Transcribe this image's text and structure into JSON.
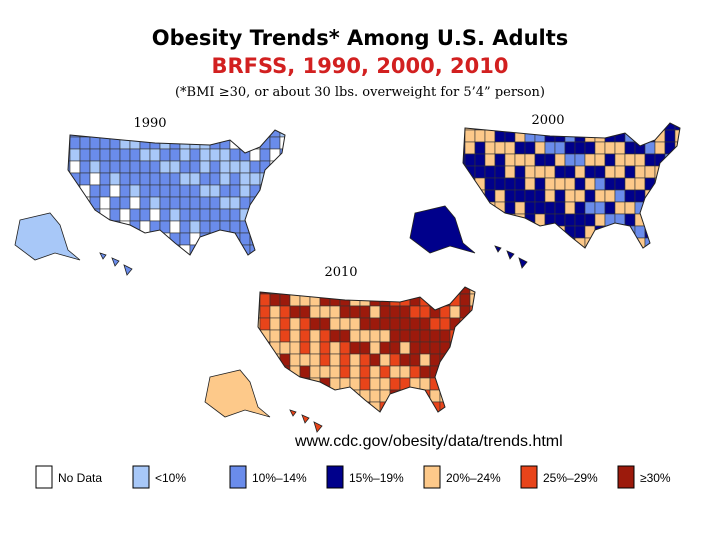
{
  "header": {
    "title": "Obesity Trends* Among U.S. Adults",
    "subtitle": "BRFSS, 1990, 2000, 2010",
    "note": "(*BMI ≥30, or about 30 lbs. overweight for 5’4” person)"
  },
  "maps": [
    {
      "label": "1990"
    },
    {
      "label": "2000"
    },
    {
      "label": "2010"
    }
  ],
  "source": "www.cdc.gov/obesity/data/trends.html",
  "legend": [
    {
      "label": "No Data",
      "color": "#ffffff"
    },
    {
      "label": "<10%",
      "color": "#a8c8f8"
    },
    {
      "label": "10%–14%",
      "color": "#6a8ceb"
    },
    {
      "label": "15%–19%",
      "color": "#00008b"
    },
    {
      "label": "20%–24%",
      "color": "#fdc98a"
    },
    {
      "label": "25%–29%",
      "color": "#e8441a"
    },
    {
      "label": "≥30%",
      "color": "#9c1a0c"
    }
  ]
}
